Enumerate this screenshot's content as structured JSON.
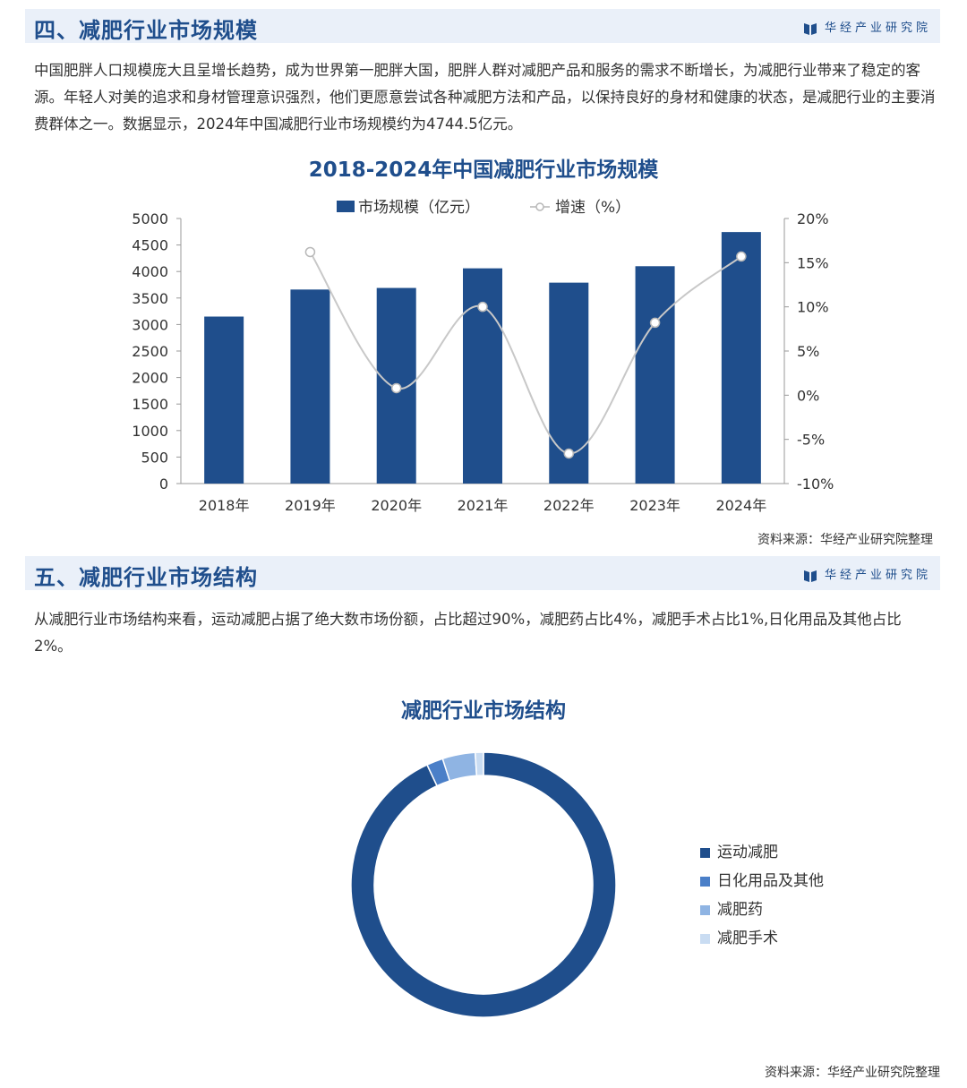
{
  "brand": "华经产业研究院",
  "section4": {
    "title": "四、减肥行业市场规模",
    "paragraph": "中国肥胖人口规模庞大且呈增长趋势，成为世界第一肥胖大国，肥胖人群对减肥产品和服务的需求不断增长，为减肥行业带来了稳定的客源。年轻人对美的追求和身材管理意识强烈，他们更愿意尝试各种减肥方法和产品，以保持良好的身材和健康的状态，是减肥行业的主要消费群体之一。数据显示，2024年中国减肥行业市场规模约为4744.5亿元。",
    "source": "资料来源：华经产业研究院整理"
  },
  "section5": {
    "title": "五、减肥行业市场结构",
    "paragraph": "从减肥行业市场结构来看，运动减肥占据了绝大数市场份额，占比超过90%，减肥药占比4%，减肥手术占比1%,日化用品及其他占比2%。",
    "source": "资料来源：华经产业研究院整理"
  },
  "colors": {
    "bar": "#1f4e8c",
    "line": "#c8c8c8",
    "title": "#1f4e8c"
  },
  "chart_data": [
    {
      "type": "bar",
      "title": "2018-2024年中国减肥行业市场规模",
      "categories": [
        "2018年",
        "2019年",
        "2020年",
        "2021年",
        "2022年",
        "2023年",
        "2024年"
      ],
      "series": [
        {
          "name": "市场规模（亿元）",
          "type": "bar",
          "axis": "left",
          "values": [
            3150,
            3660,
            3690,
            4060,
            3790,
            4100,
            4744.5
          ]
        },
        {
          "name": "增速（%）",
          "type": "line",
          "axis": "right",
          "values": [
            null,
            16.2,
            0.8,
            10.0,
            -6.6,
            8.2,
            15.7
          ]
        }
      ],
      "yleft": {
        "ticks": [
          "0",
          "500",
          "1000",
          "1500",
          "2000",
          "2500",
          "3000",
          "3500",
          "4000",
          "4500",
          "5000"
        ],
        "range": [
          0,
          5000
        ]
      },
      "yright": {
        "ticks": [
          "-10%",
          "-5%",
          "0%",
          "5%",
          "10%",
          "15%",
          "20%"
        ],
        "range": [
          -10,
          20
        ]
      },
      "grid": false,
      "legend": "top"
    },
    {
      "type": "pie",
      "variant": "donut",
      "title": "减肥行业市场结构",
      "slices": [
        {
          "label": "运动减肥",
          "value": 93,
          "color": "#1f4e8c"
        },
        {
          "label": "日化用品及其他",
          "value": 2,
          "color": "#4a7fc8"
        },
        {
          "label": "减肥药",
          "value": 4,
          "color": "#8fb4e3"
        },
        {
          "label": "减肥手术",
          "value": 1,
          "color": "#c9dcf2"
        }
      ],
      "legend": "right"
    }
  ]
}
